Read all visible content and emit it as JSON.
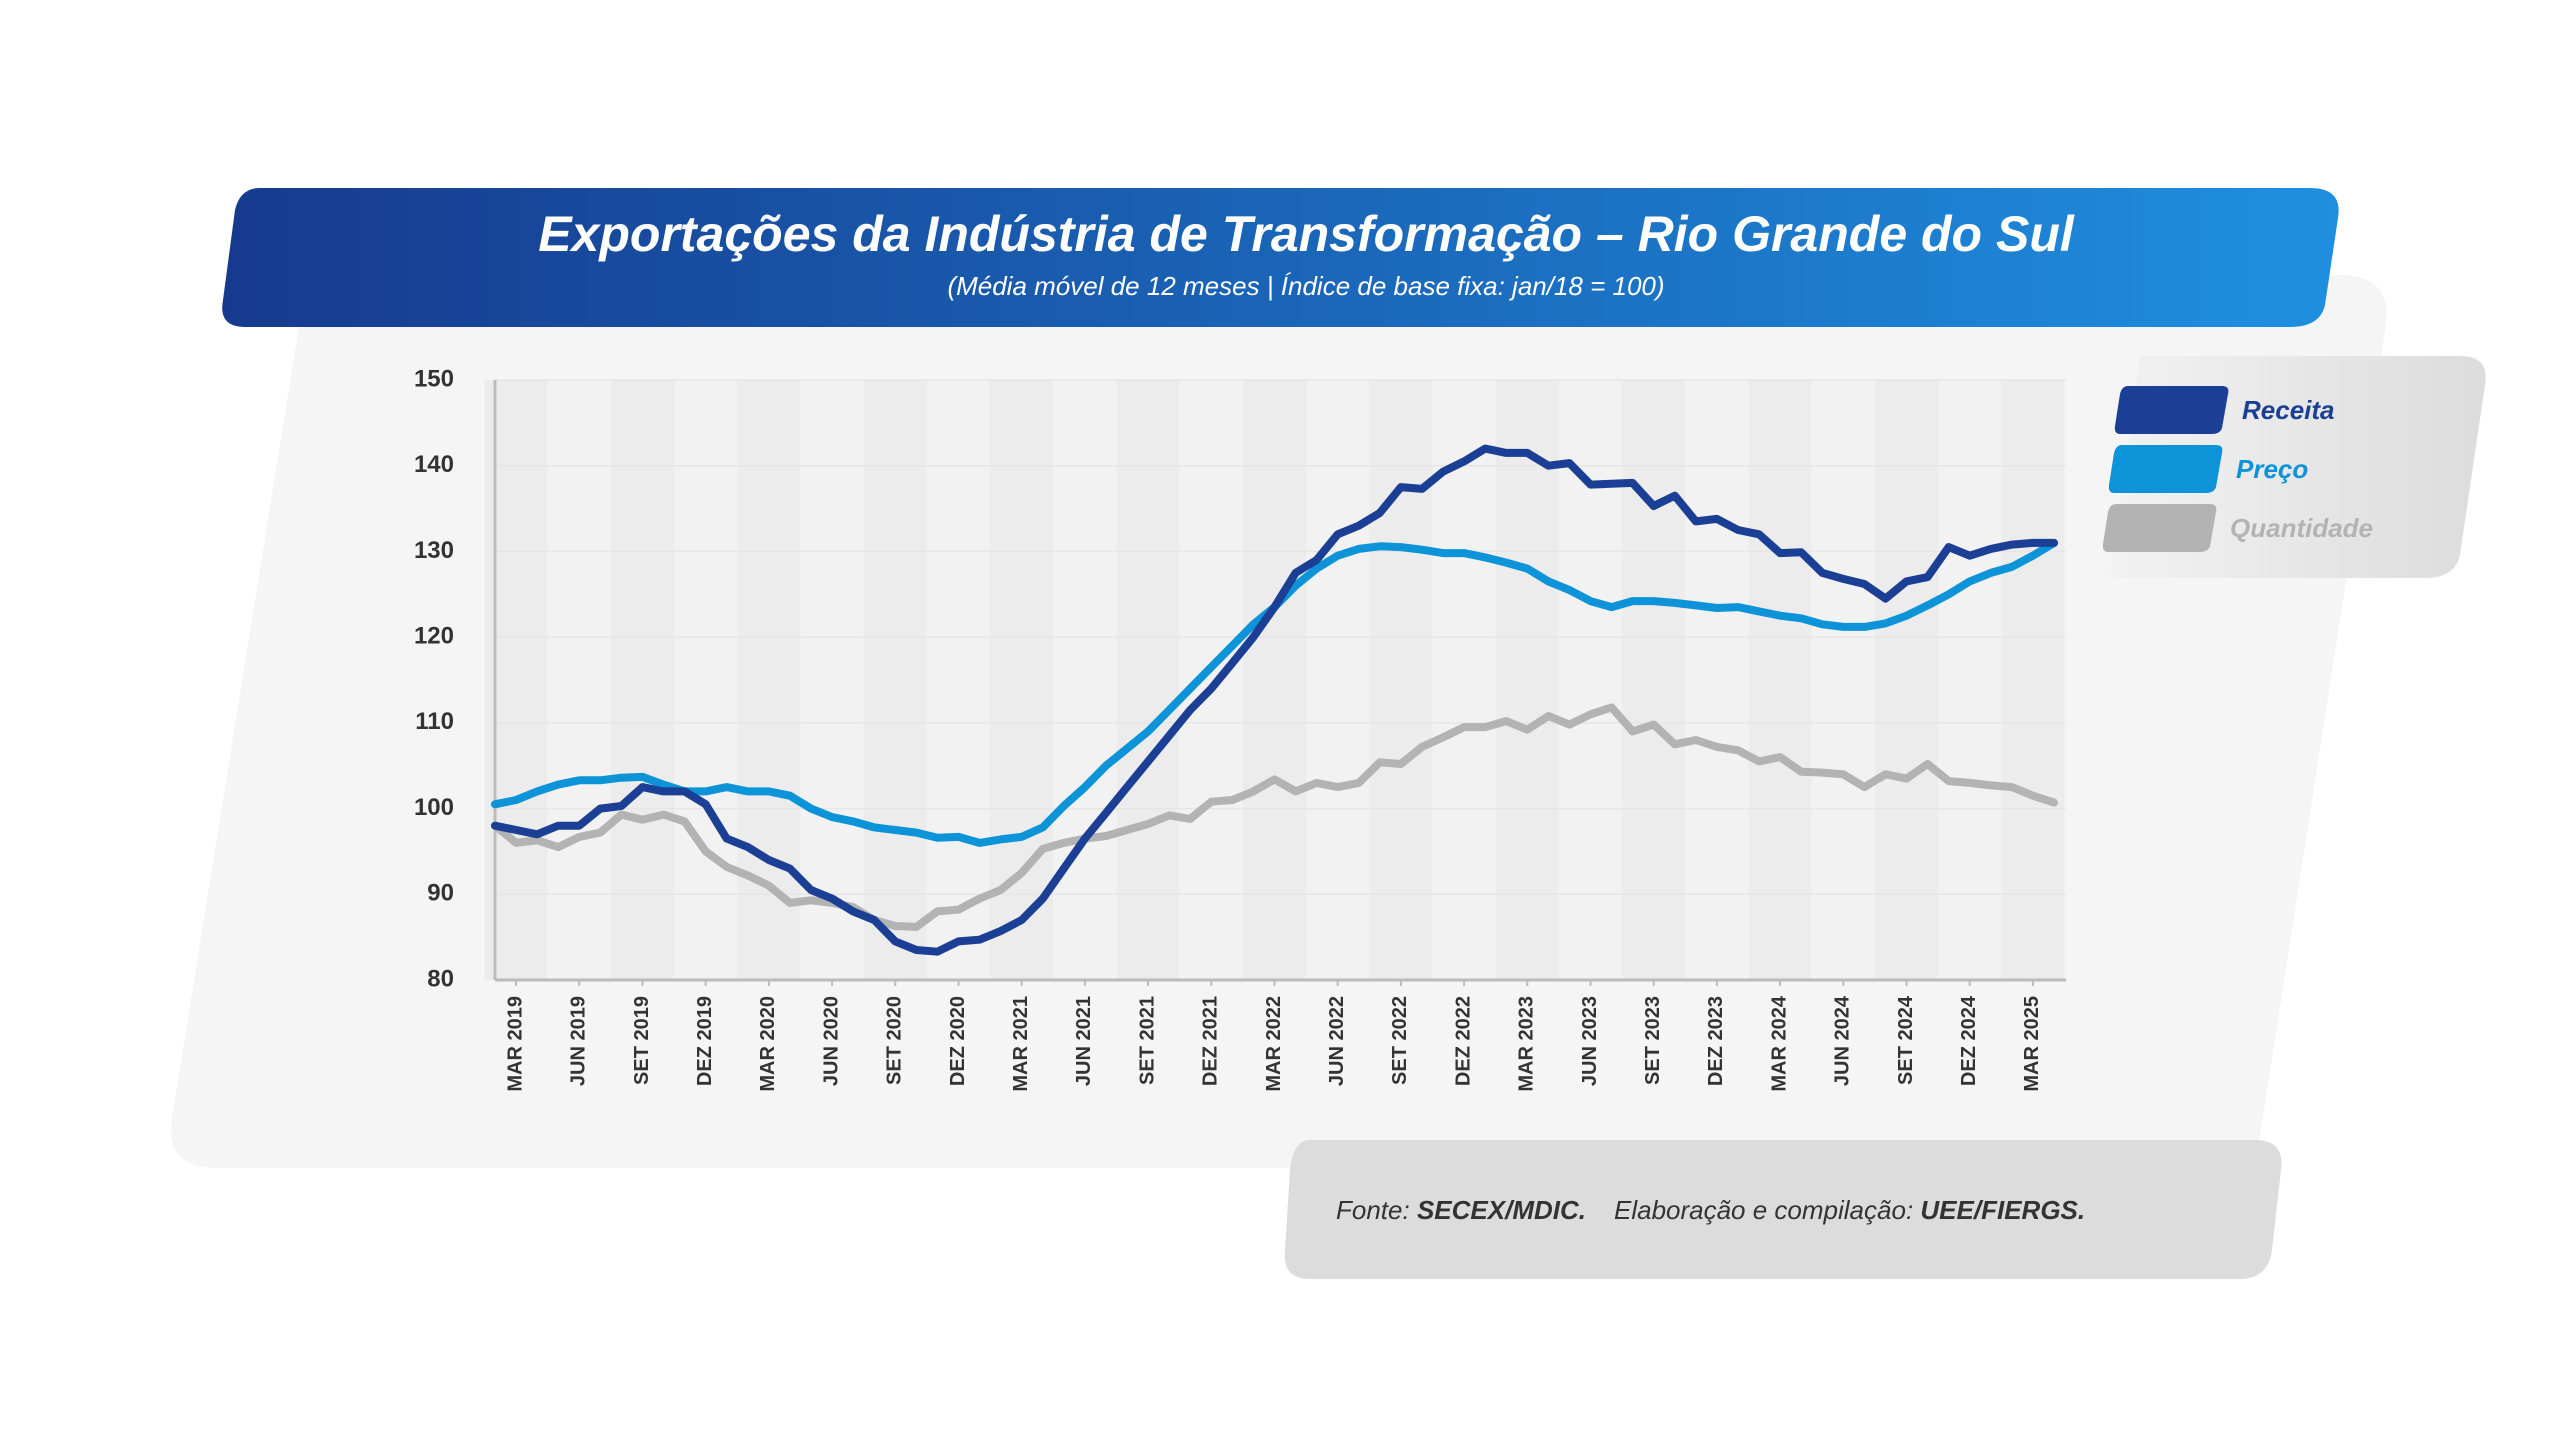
{
  "chart_data": {
    "type": "line",
    "title": "Exportações da Indústria de Transformação – Rio Grande do Sul",
    "subtitle": "(Média móvel de 12 meses | Índice de base fixa: jan/18 = 100)",
    "categories": [
      null,
      "MAR 2019",
      null,
      null,
      "JUN 2019",
      null,
      null,
      "SET 2019",
      null,
      null,
      "DEZ 2019",
      null,
      null,
      "MAR 2020",
      null,
      null,
      "JUN 2020",
      null,
      null,
      "SET 2020",
      null,
      null,
      "DEZ 2020",
      null,
      null,
      "MAR 2021",
      null,
      null,
      "JUN 2021",
      null,
      null,
      "SET 2021",
      null,
      null,
      "DEZ 2021",
      null,
      null,
      "MAR 2022",
      null,
      null,
      "JUN 2022",
      null,
      null,
      "SET 2022",
      null,
      null,
      "DEZ 2022",
      null,
      null,
      "MAR 2023",
      null,
      null,
      "JUN 2023",
      null,
      null,
      "SET 2023",
      null,
      null,
      "DEZ 2023",
      null,
      null,
      "MAR 2024",
      null,
      null,
      "JUN 2024",
      null,
      null,
      "SET 2024",
      null,
      null,
      "DEZ 2024",
      null,
      null,
      "MAR 2025",
      null
    ],
    "series": [
      {
        "name": "Receita",
        "color": "#1b3f94",
        "values": [
          98,
          97.5,
          97,
          98,
          98,
          100,
          100.3,
          102.5,
          102,
          102,
          100.5,
          96.5,
          95.5,
          94,
          93,
          90.5,
          89.5,
          88,
          87,
          84.5,
          83.5,
          83.3,
          84.5,
          84.7,
          85.7,
          87,
          89.5,
          93,
          96.5,
          99.5,
          102.5,
          105.5,
          108.5,
          111.5,
          114,
          117,
          120,
          123.5,
          127.5,
          129,
          132,
          133,
          134.5,
          137.5,
          137.3,
          139.3,
          140.5,
          142,
          141.5,
          141.5,
          140,
          140.3,
          137.8,
          137.9,
          138,
          135.3,
          136.5,
          133.5,
          133.8,
          132.5,
          132,
          129.8,
          129.9,
          127.5,
          126.8,
          126.2,
          124.5,
          126.5,
          127,
          130.5,
          129.5,
          130.3,
          130.8,
          131,
          131
        ]
      },
      {
        "name": "Preço",
        "color": "#0c93d8",
        "values": [
          100.5,
          101,
          102,
          102.8,
          103.3,
          103.3,
          103.6,
          103.7,
          102.8,
          102,
          102,
          102.5,
          102,
          102,
          101.5,
          100,
          99,
          98.5,
          97.8,
          97.5,
          97.2,
          96.6,
          96.7,
          96,
          96.4,
          96.7,
          97.8,
          100.3,
          102.5,
          105,
          107,
          109,
          111.5,
          114,
          116.5,
          119,
          121.5,
          123.5,
          126,
          128,
          129.5,
          130.3,
          130.6,
          130.5,
          130.2,
          129.8,
          129.8,
          129.3,
          128.7,
          128,
          126.5,
          125.5,
          124.2,
          123.5,
          124.2,
          124.2,
          124,
          123.7,
          123.4,
          123.5,
          123,
          122.5,
          122.2,
          121.5,
          121.2,
          121.2,
          121.6,
          122.5,
          123.7,
          125,
          126.5,
          127.5,
          128.2,
          129.5,
          131
        ]
      },
      {
        "name": "Quantidade",
        "color": "#b3b3b3",
        "values": [
          98,
          96,
          96.3,
          95.5,
          96.7,
          97.2,
          99.3,
          98.7,
          99.3,
          98.5,
          95,
          93.2,
          92.2,
          91,
          89,
          89.3,
          89,
          88.5,
          87,
          86.3,
          86.2,
          88,
          88.2,
          89.5,
          90.5,
          92.5,
          95.3,
          96,
          96.5,
          96.8,
          97.5,
          98.2,
          99.2,
          98.8,
          100.8,
          101,
          102,
          103.4,
          102,
          103,
          102.5,
          103,
          105.4,
          105.2,
          107.2,
          108.3,
          109.5,
          109.5,
          110.2,
          109.2,
          110.8,
          109.8,
          111,
          111.8,
          109,
          109.8,
          107.5,
          108,
          107.2,
          106.8,
          105.5,
          106,
          104.3,
          104.2,
          104,
          102.5,
          104,
          103.5,
          105.2,
          103.2,
          103,
          102.7,
          102.5,
          101.5,
          100.7
        ]
      }
    ],
    "ylim": [
      80,
      150
    ],
    "yticks": [
      80,
      90,
      100,
      110,
      120,
      130,
      140,
      150
    ],
    "legend": "right",
    "source": {
      "label": "Fonte:",
      "value": "SECEX/MDIC.",
      "credit_label": "Elaboração e compilação:",
      "credit_value": "UEE/FIERGS."
    }
  }
}
